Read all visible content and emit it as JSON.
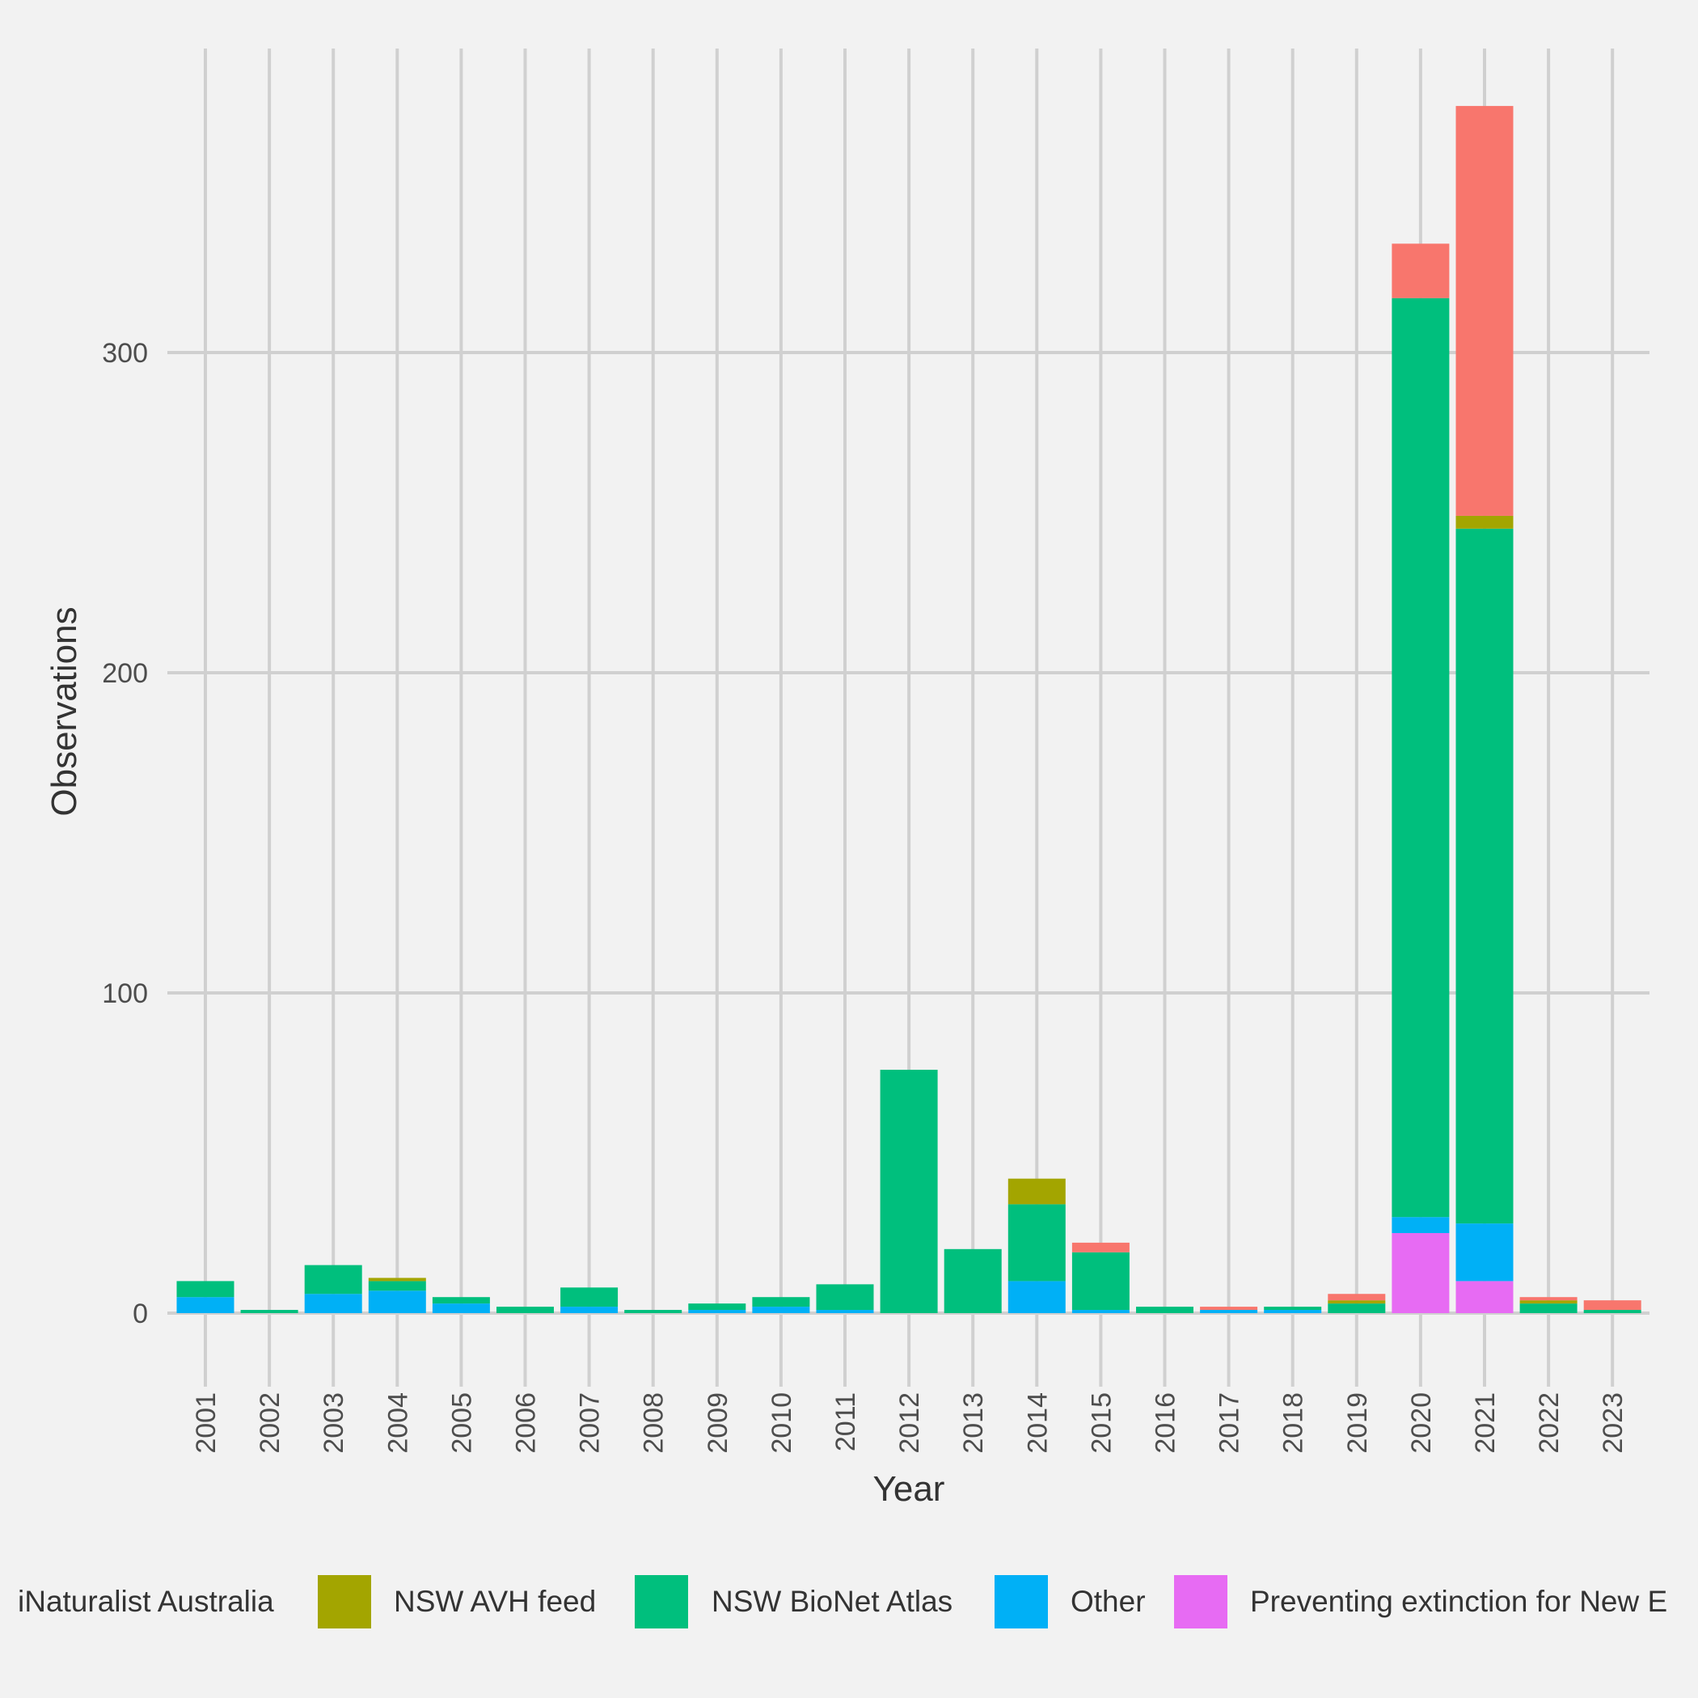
{
  "chart_data": {
    "type": "bar",
    "stacked": true,
    "xlabel": "Year",
    "ylabel": "Observations",
    "ylim": [
      -17,
      378
    ],
    "yticks": [
      0,
      100,
      200,
      300
    ],
    "grid": true,
    "legend_position": "bottom",
    "categories": [
      "2001",
      "2002",
      "2003",
      "2004",
      "2005",
      "2006",
      "2007",
      "2008",
      "2009",
      "2010",
      "2011",
      "2012",
      "2013",
      "2014",
      "2015",
      "2016",
      "2017",
      "2018",
      "2019",
      "2020",
      "2021",
      "2022",
      "2023"
    ],
    "series": [
      {
        "name": "Preventing extinction for New E",
        "color": "#e76bf3",
        "values": [
          0,
          0,
          0,
          0,
          0,
          0,
          0,
          0,
          0,
          0,
          0,
          0,
          0,
          0,
          0,
          0,
          0,
          0,
          0,
          25,
          10,
          0,
          0
        ]
      },
      {
        "name": "Other",
        "color": "#00b0f6",
        "values": [
          5,
          0,
          6,
          7,
          3,
          0,
          2,
          0,
          1,
          2,
          1,
          0,
          0,
          10,
          1,
          0,
          1,
          1,
          0,
          5,
          18,
          0,
          0
        ]
      },
      {
        "name": "NSW BioNet Atlas",
        "color": "#00bf7d",
        "values": [
          5,
          1,
          9,
          3,
          2,
          2,
          6,
          1,
          2,
          3,
          8,
          76,
          20,
          24,
          18,
          2,
          0,
          1,
          3,
          287,
          217,
          3,
          1
        ]
      },
      {
        "name": "NSW AVH feed",
        "color": "#a3a500",
        "values": [
          0,
          0,
          0,
          1,
          0,
          0,
          0,
          0,
          0,
          0,
          0,
          0,
          0,
          8,
          0,
          0,
          0,
          0,
          1,
          0,
          4,
          1,
          0
        ]
      },
      {
        "name": "iNaturalist Australia",
        "color": "#f8766d",
        "values": [
          0,
          0,
          0,
          0,
          0,
          0,
          0,
          0,
          0,
          0,
          0,
          0,
          0,
          0,
          3,
          0,
          1,
          0,
          2,
          17,
          128,
          1,
          3
        ]
      }
    ],
    "legend_order": [
      "iNaturalist Australia",
      "NSW AVH feed",
      "NSW BioNet Atlas",
      "Other",
      "Preventing extinction for New E"
    ]
  }
}
